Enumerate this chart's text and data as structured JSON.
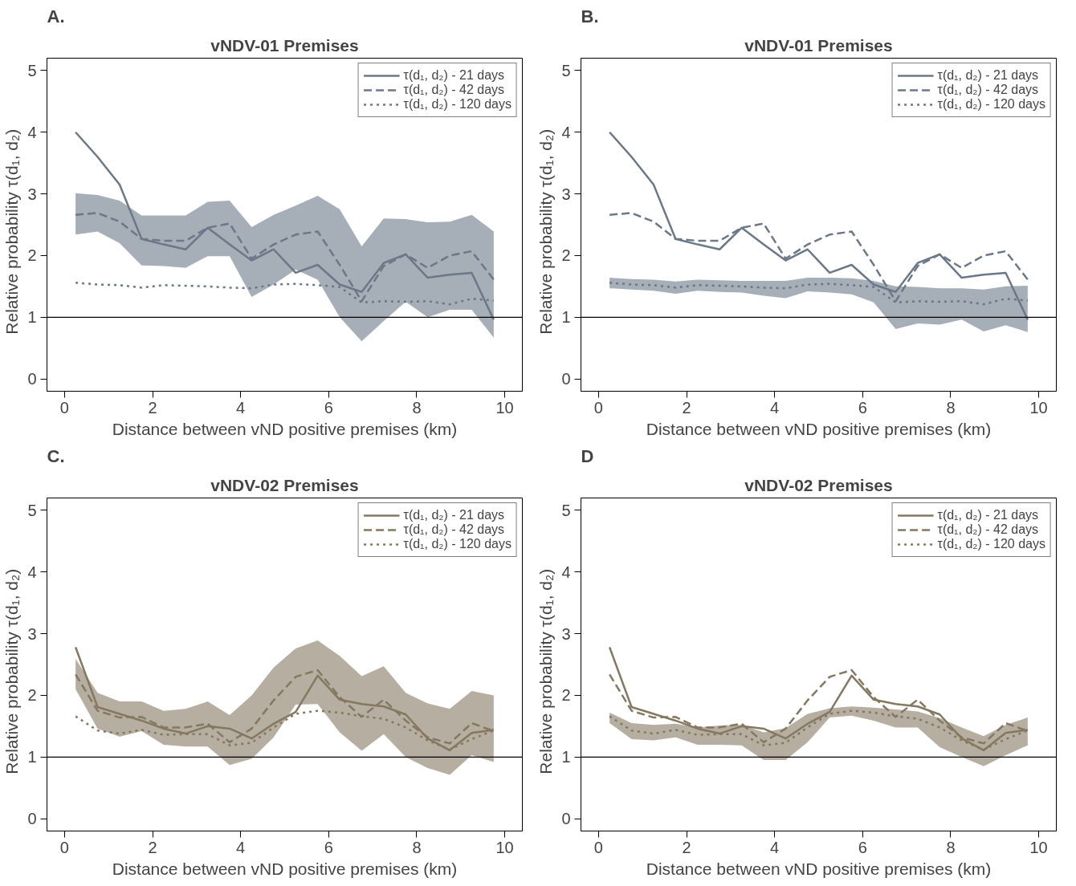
{
  "chart_data": [
    {
      "type": "line",
      "title": "vNDV-01 Premises",
      "annotations": [
        "A."
      ],
      "xlabel": "Distance between vND positive premises (km)",
      "ylabel": "Relative probability    τ(d₁, d₂)",
      "x": [
        0.25,
        0.75,
        1.25,
        1.75,
        2.25,
        2.75,
        3.25,
        3.75,
        4.25,
        4.75,
        5.25,
        5.75,
        6.25,
        6.75,
        7.25,
        7.75,
        8.25,
        8.75,
        9.25,
        9.75
      ],
      "xlim": [
        -0.4,
        10.4
      ],
      "ylim": [
        -0.2,
        5.2
      ],
      "xticks": [
        0,
        2,
        4,
        6,
        8,
        10
      ],
      "yticks": [
        0,
        1,
        2,
        3,
        4,
        5
      ],
      "legend": "top right",
      "ref_lines": [
        {
          "axis": "y",
          "value": 1,
          "color": "#000000"
        }
      ],
      "series": [
        {
          "name": "τ(d₁, d₂) - 21 days",
          "color": "#6b7888",
          "line_style": "solid",
          "values": [
            4.0,
            3.6,
            3.15,
            2.27,
            2.18,
            2.1,
            2.45,
            2.18,
            1.92,
            2.1,
            1.72,
            1.85,
            1.53,
            1.41,
            1.88,
            2.02,
            1.64,
            1.69,
            1.72,
            0.96
          ]
        },
        {
          "name": "τ(d₁, d₂) - 42 days",
          "color": "#6b7888",
          "line_style": "dashed",
          "values": [
            2.66,
            2.69,
            2.55,
            2.27,
            2.24,
            2.24,
            2.45,
            2.52,
            1.95,
            2.18,
            2.34,
            2.39,
            1.85,
            1.26,
            1.83,
            2.02,
            1.8,
            2.0,
            2.07,
            1.61
          ],
          "upper": [
            3.01,
            2.98,
            2.89,
            2.65,
            2.65,
            2.65,
            2.87,
            2.89,
            2.46,
            2.66,
            2.81,
            2.97,
            2.75,
            2.15,
            2.6,
            2.59,
            2.54,
            2.55,
            2.66,
            2.39
          ],
          "lower": [
            2.34,
            2.39,
            2.2,
            1.84,
            1.83,
            1.8,
            1.99,
            1.99,
            1.33,
            1.53,
            1.77,
            1.61,
            1.0,
            0.61,
            0.94,
            1.25,
            1.0,
            1.12,
            1.12,
            0.67
          ]
        },
        {
          "name": "τ(d₁, d₂) - 120 days",
          "color": "#6b7888",
          "line_style": "dotted",
          "values": [
            1.56,
            1.53,
            1.52,
            1.48,
            1.52,
            1.51,
            1.5,
            1.48,
            1.47,
            1.53,
            1.54,
            1.52,
            1.49,
            1.24,
            1.26,
            1.25,
            1.26,
            1.21,
            1.3,
            1.27
          ]
        }
      ]
    },
    {
      "type": "line",
      "title": "vNDV-01 Premises",
      "annotations": [
        "B."
      ],
      "xlabel": "Distance between vND positive premises (km)",
      "ylabel": "Relative probability    τ(d₁, d₂)",
      "x": [
        0.25,
        0.75,
        1.25,
        1.75,
        2.25,
        2.75,
        3.25,
        3.75,
        4.25,
        4.75,
        5.25,
        5.75,
        6.25,
        6.75,
        7.25,
        7.75,
        8.25,
        8.75,
        9.25,
        9.75
      ],
      "xlim": [
        -0.4,
        10.4
      ],
      "ylim": [
        -0.2,
        5.2
      ],
      "xticks": [
        0,
        2,
        4,
        6,
        8,
        10
      ],
      "yticks": [
        0,
        1,
        2,
        3,
        4,
        5
      ],
      "legend": "top right",
      "ref_lines": [
        {
          "axis": "y",
          "value": 1,
          "color": "#000000"
        }
      ],
      "series": [
        {
          "name": "τ(d₁, d₂) - 21 days",
          "color": "#6b7888",
          "line_style": "solid",
          "values": [
            4.0,
            3.6,
            3.15,
            2.27,
            2.18,
            2.1,
            2.45,
            2.18,
            1.92,
            2.1,
            1.72,
            1.85,
            1.53,
            1.41,
            1.88,
            2.02,
            1.64,
            1.69,
            1.72,
            0.96
          ]
        },
        {
          "name": "τ(d₁, d₂) - 42 days",
          "color": "#6b7888",
          "line_style": "dashed",
          "values": [
            2.66,
            2.69,
            2.55,
            2.27,
            2.24,
            2.24,
            2.45,
            2.52,
            1.95,
            2.18,
            2.34,
            2.39,
            1.85,
            1.26,
            1.83,
            2.02,
            1.8,
            2.0,
            2.07,
            1.61
          ]
        },
        {
          "name": "τ(d₁, d₂) - 120 days",
          "color": "#6b7888",
          "line_style": "dotted",
          "values": [
            1.56,
            1.53,
            1.52,
            1.48,
            1.52,
            1.51,
            1.5,
            1.48,
            1.47,
            1.53,
            1.54,
            1.52,
            1.49,
            1.24,
            1.26,
            1.25,
            1.26,
            1.21,
            1.3,
            1.27
          ],
          "upper": [
            1.64,
            1.62,
            1.61,
            1.58,
            1.61,
            1.6,
            1.59,
            1.59,
            1.59,
            1.64,
            1.64,
            1.63,
            1.59,
            1.5,
            1.49,
            1.47,
            1.47,
            1.45,
            1.5,
            1.51
          ],
          "lower": [
            1.47,
            1.45,
            1.43,
            1.38,
            1.43,
            1.41,
            1.4,
            1.35,
            1.31,
            1.42,
            1.4,
            1.37,
            1.24,
            0.81,
            0.9,
            0.88,
            0.96,
            0.77,
            0.87,
            0.76
          ]
        }
      ]
    },
    {
      "type": "line",
      "title": "vNDV-02 Premises",
      "annotations": [
        "C."
      ],
      "xlabel": "Distance between vND positive premises (km)",
      "ylabel": "Relative probability    τ(d₁, d₂)",
      "x": [
        0.25,
        0.75,
        1.25,
        1.75,
        2.25,
        2.75,
        3.25,
        3.75,
        4.25,
        4.75,
        5.25,
        5.75,
        6.25,
        6.75,
        7.25,
        7.75,
        8.25,
        8.75,
        9.25,
        9.75
      ],
      "xlim": [
        -0.4,
        10.4
      ],
      "ylim": [
        -0.2,
        5.2
      ],
      "xticks": [
        0,
        2,
        4,
        6,
        8,
        10
      ],
      "yticks": [
        0,
        1,
        2,
        3,
        4,
        5
      ],
      "legend": "top right",
      "ref_lines": [
        {
          "axis": "y",
          "value": 1,
          "color": "#000000"
        }
      ],
      "series": [
        {
          "name": "τ(d₁, d₂) - 21 days",
          "color": "#857860",
          "line_style": "solid",
          "values": [
            2.78,
            1.81,
            1.7,
            1.59,
            1.46,
            1.38,
            1.5,
            1.46,
            1.3,
            1.54,
            1.73,
            2.32,
            1.93,
            1.86,
            1.82,
            1.69,
            1.3,
            1.11,
            1.39,
            1.44
          ]
        },
        {
          "name": "τ(d₁, d₂) - 42 days",
          "color": "#857860",
          "line_style": "dashed",
          "values": [
            2.34,
            1.75,
            1.64,
            1.65,
            1.48,
            1.48,
            1.54,
            1.24,
            1.46,
            1.92,
            2.3,
            2.41,
            1.97,
            1.65,
            1.93,
            1.59,
            1.32,
            1.22,
            1.55,
            1.42
          ],
          "upper": [
            2.59,
            2.04,
            1.9,
            1.9,
            1.75,
            1.78,
            1.9,
            1.68,
            2.0,
            2.45,
            2.76,
            2.89,
            2.64,
            2.31,
            2.47,
            2.04,
            1.87,
            1.78,
            2.07,
            2.0
          ],
          "lower": [
            2.1,
            1.46,
            1.33,
            1.42,
            1.2,
            1.17,
            1.17,
            0.87,
            0.97,
            1.32,
            1.85,
            1.86,
            1.4,
            1.1,
            1.37,
            1.0,
            0.82,
            0.71,
            1.03,
            0.92
          ]
        },
        {
          "name": "τ(d₁, d₂) - 120 days",
          "color": "#857860",
          "line_style": "dotted",
          "values": [
            1.66,
            1.43,
            1.38,
            1.44,
            1.36,
            1.37,
            1.37,
            1.19,
            1.23,
            1.48,
            1.7,
            1.75,
            1.72,
            1.66,
            1.62,
            1.48,
            1.27,
            1.12,
            1.29,
            1.43
          ]
        }
      ]
    },
    {
      "type": "line",
      "title": "vNDV-02 Premises",
      "annotations": [
        "D"
      ],
      "xlabel": "Distance between vND positive premises (km)",
      "ylabel": "Relative probability    τ(d₁, d₂)",
      "x": [
        0.25,
        0.75,
        1.25,
        1.75,
        2.25,
        2.75,
        3.25,
        3.75,
        4.25,
        4.75,
        5.25,
        5.75,
        6.25,
        6.75,
        7.25,
        7.75,
        8.25,
        8.75,
        9.25,
        9.75
      ],
      "xlim": [
        -0.4,
        10.4
      ],
      "ylim": [
        -0.2,
        5.2
      ],
      "xticks": [
        0,
        2,
        4,
        6,
        8,
        10
      ],
      "yticks": [
        0,
        1,
        2,
        3,
        4,
        5
      ],
      "legend": "top right",
      "ref_lines": [
        {
          "axis": "y",
          "value": 1,
          "color": "#000000"
        }
      ],
      "series": [
        {
          "name": "τ(d₁, d₂) - 21 days",
          "color": "#857860",
          "line_style": "solid",
          "values": [
            2.78,
            1.81,
            1.7,
            1.59,
            1.46,
            1.38,
            1.5,
            1.46,
            1.3,
            1.54,
            1.73,
            2.32,
            1.93,
            1.86,
            1.82,
            1.69,
            1.3,
            1.11,
            1.39,
            1.44
          ]
        },
        {
          "name": "τ(d₁, d₂) - 42 days",
          "color": "#857860",
          "line_style": "dashed",
          "values": [
            2.34,
            1.75,
            1.64,
            1.65,
            1.48,
            1.48,
            1.54,
            1.24,
            1.46,
            1.92,
            2.3,
            2.41,
            1.97,
            1.65,
            1.93,
            1.59,
            1.32,
            1.22,
            1.55,
            1.42
          ]
        },
        {
          "name": "τ(d₁, d₂) - 120 days",
          "color": "#857860",
          "line_style": "dotted",
          "values": [
            1.66,
            1.43,
            1.38,
            1.44,
            1.36,
            1.37,
            1.37,
            1.19,
            1.23,
            1.48,
            1.7,
            1.75,
            1.72,
            1.66,
            1.62,
            1.48,
            1.27,
            1.12,
            1.29,
            1.43
          ],
          "upper": [
            1.72,
            1.55,
            1.52,
            1.54,
            1.48,
            1.51,
            1.52,
            1.4,
            1.47,
            1.7,
            1.79,
            1.82,
            1.8,
            1.77,
            1.74,
            1.63,
            1.48,
            1.34,
            1.52,
            1.64
          ],
          "lower": [
            1.55,
            1.29,
            1.27,
            1.32,
            1.2,
            1.2,
            1.19,
            0.95,
            0.95,
            1.24,
            1.64,
            1.67,
            1.59,
            1.48,
            1.48,
            1.16,
            1.0,
            0.85,
            1.03,
            1.19
          ]
        }
      ]
    }
  ]
}
